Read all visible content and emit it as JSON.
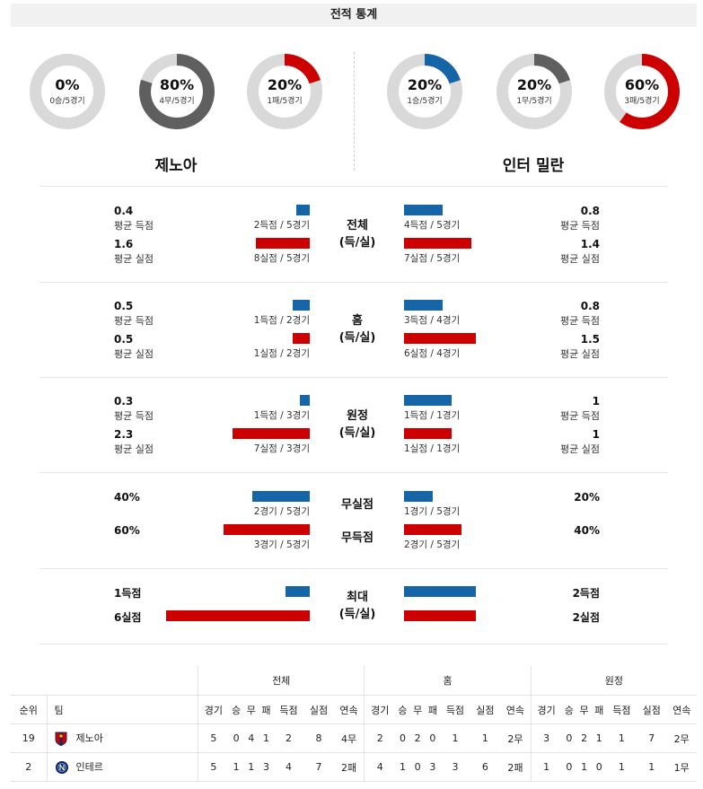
{
  "header": {
    "title": "전적 통계"
  },
  "teams": {
    "home": "제노아",
    "away": "인터 밀란"
  },
  "colors": {
    "blue": "#1565a7",
    "red": "#cc0000",
    "gray": "#5f5f5f",
    "track": "#d9d9d9"
  },
  "donuts": {
    "home": [
      {
        "pct": "0%",
        "sub": "0승/5경기",
        "fraction": 0,
        "color": "#5f5f5f"
      },
      {
        "pct": "80%",
        "sub": "4무/5경기",
        "fraction": 0.8,
        "color": "#5f5f5f"
      },
      {
        "pct": "20%",
        "sub": "1패/5경기",
        "fraction": 0.2,
        "color": "#cc0000"
      }
    ],
    "away": [
      {
        "pct": "20%",
        "sub": "1승/5경기",
        "fraction": 0.2,
        "color": "#1565a7"
      },
      {
        "pct": "20%",
        "sub": "1무/5경기",
        "fraction": 0.2,
        "color": "#5f5f5f"
      },
      {
        "pct": "60%",
        "sub": "3패/5경기",
        "fraction": 0.6,
        "color": "#cc0000"
      }
    ]
  },
  "sections": [
    {
      "label": [
        "전체",
        "(득/실)"
      ],
      "rows": [
        {
          "home_val": "0.4",
          "home_lab": "평균 득점",
          "home_cnt": "2득점 / 5경기",
          "home_bar": 0.4,
          "away_val": "0.8",
          "away_lab": "평균 득점",
          "away_cnt": "4득점 / 5경기",
          "away_bar": 0.8,
          "color": "blue"
        },
        {
          "home_val": "1.6",
          "home_lab": "평균 실점",
          "home_cnt": "8실점 / 5경기",
          "home_bar": 1.6,
          "away_val": "1.4",
          "away_lab": "평균 실점",
          "away_cnt": "7실점 / 5경기",
          "away_bar": 1.4,
          "color": "red"
        }
      ]
    },
    {
      "label": [
        "홈",
        "(득/실)"
      ],
      "rows": [
        {
          "home_val": "0.5",
          "home_lab": "평균 득점",
          "home_cnt": "1득점 / 2경기",
          "home_bar": 0.5,
          "away_val": "0.8",
          "away_lab": "평균 득점",
          "away_cnt": "3득점 / 4경기",
          "away_bar": 0.8,
          "color": "blue"
        },
        {
          "home_val": "0.5",
          "home_lab": "평균 실점",
          "home_cnt": "1실점 / 2경기",
          "home_bar": 0.5,
          "away_val": "1.5",
          "away_lab": "평균 실점",
          "away_cnt": "6실점 / 4경기",
          "away_bar": 1.5,
          "color": "red"
        }
      ]
    },
    {
      "label": [
        "원정",
        "(득/실)"
      ],
      "rows": [
        {
          "home_val": "0.3",
          "home_lab": "평균 득점",
          "home_cnt": "1득점 / 3경기",
          "home_bar": 0.3,
          "away_val": "1",
          "away_lab": "평균 득점",
          "away_cnt": "1득점 / 1경기",
          "away_bar": 1,
          "color": "blue"
        },
        {
          "home_val": "2.3",
          "home_lab": "평균 실점",
          "home_cnt": "7실점 / 3경기",
          "home_bar": 2.3,
          "away_val": "1",
          "away_lab": "평균 실점",
          "away_cnt": "1실점 / 1경기",
          "away_bar": 1,
          "color": "red"
        }
      ]
    }
  ],
  "clean": {
    "rows": [
      {
        "label": "무실점",
        "home_val": "40%",
        "home_cnt": "2경기 / 5경기",
        "home_bar": 0.4,
        "away_val": "20%",
        "away_cnt": "1경기 / 5경기",
        "away_bar": 0.2,
        "color": "blue"
      },
      {
        "label": "무득점",
        "home_val": "60%",
        "home_cnt": "3경기 / 5경기",
        "home_bar": 0.6,
        "away_val": "40%",
        "away_cnt": "2경기 / 5경기",
        "away_bar": 0.4,
        "color": "red"
      }
    ]
  },
  "max": {
    "label": [
      "최대",
      "(득/실)"
    ],
    "rows": [
      {
        "home_val": "1득점",
        "home_bar": 1,
        "away_val": "2득점",
        "away_bar": 2,
        "color": "blue"
      },
      {
        "home_val": "6실점",
        "home_bar": 6,
        "away_val": "2실점",
        "away_bar": 2,
        "color": "red"
      }
    ]
  },
  "standings": {
    "groups": [
      "전체",
      "홈",
      "원정"
    ],
    "col_rank": "순위",
    "col_team": "팀",
    "cols": [
      "경기",
      "승",
      "무",
      "패",
      "득점",
      "실점",
      "연속"
    ],
    "rows": [
      {
        "rank": "19",
        "team": "제노아",
        "crest": "genoa-crest-icon",
        "all": [
          "5",
          "0",
          "4",
          "1",
          "2",
          "8",
          "4무"
        ],
        "home": [
          "2",
          "0",
          "2",
          "0",
          "1",
          "1",
          "2무"
        ],
        "away": [
          "3",
          "0",
          "2",
          "1",
          "1",
          "7",
          "2무"
        ]
      },
      {
        "rank": "2",
        "team": "인테르",
        "crest": "inter-crest-icon",
        "all": [
          "5",
          "1",
          "1",
          "3",
          "4",
          "7",
          "2패"
        ],
        "home": [
          "4",
          "1",
          "0",
          "3",
          "3",
          "6",
          "2패"
        ],
        "away": [
          "1",
          "0",
          "1",
          "0",
          "1",
          "1",
          "1무"
        ]
      }
    ]
  }
}
